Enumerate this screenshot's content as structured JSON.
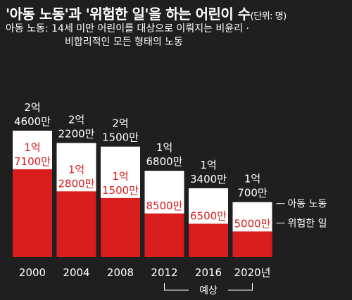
{
  "header": {
    "title": "'아동 노동'과 '위험한 일'을 하는 어린이 수",
    "unit": "(단위: 명)",
    "note_label": "아동 노동:",
    "note_line1": "14세 미만 어린이를 대상으로 이뤄지는 비윤리 ·",
    "note_line2": "비합리적인 모든 형태의 노동"
  },
  "chart_data": {
    "type": "bar",
    "categories": [
      "2000",
      "2004",
      "2008",
      "2012",
      "2016",
      "2020년"
    ],
    "series": [
      {
        "name": "아동 노동",
        "values": [
          246000000,
          222000000,
          215000000,
          168000000,
          134000000,
          107000000
        ],
        "labels": [
          [
            "2억",
            "4600만"
          ],
          [
            "2억",
            "2200만"
          ],
          [
            "2억",
            "1500만"
          ],
          [
            "1억",
            "6800만"
          ],
          [
            "1억",
            "3400만"
          ],
          [
            "1억",
            "700만"
          ]
        ],
        "color": "#ffffff"
      },
      {
        "name": "위험한 일",
        "values": [
          171000000,
          128000000,
          115000000,
          85000000,
          65000000,
          50000000
        ],
        "labels": [
          [
            "1억",
            "7100만"
          ],
          [
            "1억",
            "2800만"
          ],
          [
            "1억",
            "1500만"
          ],
          [
            "8500만"
          ],
          [
            "6500만"
          ],
          [
            "5000만"
          ]
        ],
        "color": "#d91c1c"
      }
    ],
    "bracket_label": "예상",
    "bracket_range": [
      "2012",
      "2020년"
    ]
  }
}
